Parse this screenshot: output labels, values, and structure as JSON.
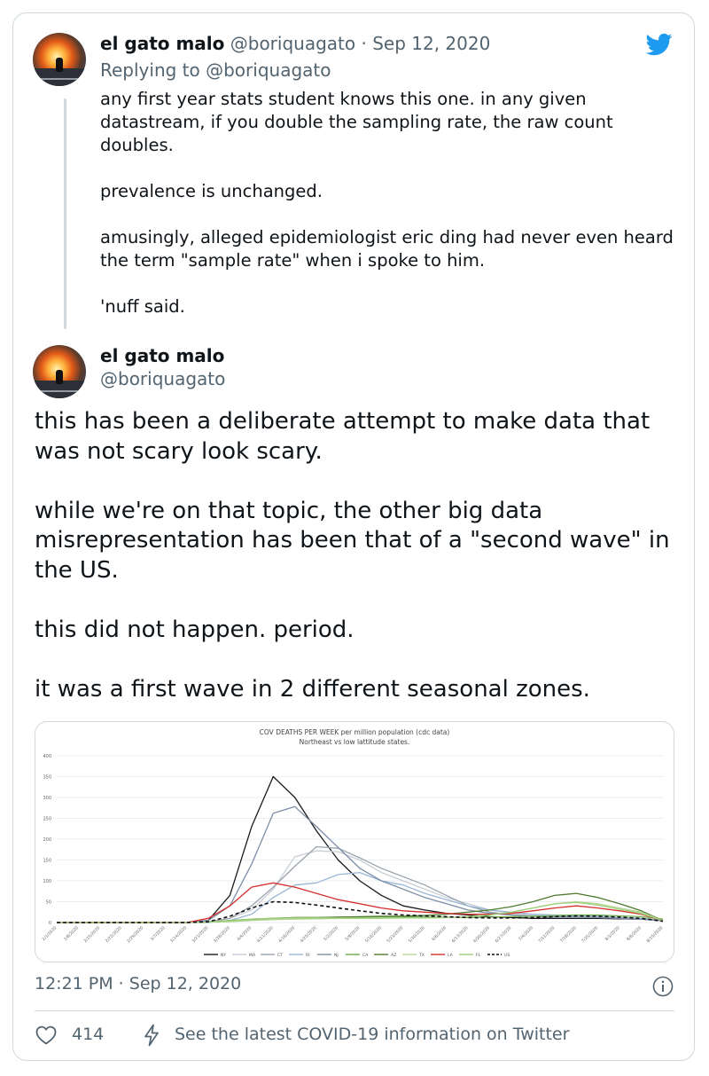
{
  "tweet1": {
    "display_name": "el gato malo",
    "handle": "@boriquagato",
    "separator": "·",
    "date": "Sep 12, 2020",
    "replying_to": "Replying to @boriquagato",
    "text": "any first year stats student knows this one.  in any given datastream, if you double the sampling rate, the raw count doubles.\n\nprevalence is unchanged.\n\namusingly, alleged epidemiologist eric ding had never even heard the term \"sample rate\" when i spoke to him.\n\n'nuff said."
  },
  "tweet2": {
    "display_name": "el gato malo",
    "handle": "@boriquagato",
    "text": "this has been a deliberate attempt to make data that was not scary look scary.\n\nwhile we're on that topic, the other big data misrepresentation has been that of a \"second wave\" in the US.\n\nthis did not happen.  period.\n\nit was a first wave in 2 different seasonal zones."
  },
  "footer": {
    "timestamp": "12:21 PM · Sep 12, 2020",
    "like_count": "414",
    "covid_link": "See the latest COVID-19 information on Twitter"
  },
  "icons": {
    "brand": "twitter-bird-icon",
    "like": "heart-icon",
    "covid": "bolt-icon",
    "info": "info-icon"
  },
  "colors": {
    "twitter_blue": "#1d9bf0",
    "muted_text": "#536471",
    "border": "#cfd9de"
  },
  "chart_data": {
    "type": "line",
    "title": "COV DEATHS PER WEEK per million population (cdc data)",
    "subtitle": "Northeast vs low lattitude states.",
    "xlabel": "",
    "ylabel": "",
    "ylim": [
      0,
      400
    ],
    "yticks": [
      "0",
      "50",
      "100",
      "150",
      "200",
      "250",
      "300",
      "350",
      "400"
    ],
    "grid": true,
    "legend_position": "bottom",
    "categories": [
      "2/1/2020",
      "2/8/2020",
      "2/15/2020",
      "2/22/2020",
      "2/29/2020",
      "3/7/2020",
      "3/14/2020",
      "3/21/2020",
      "3/28/2020",
      "4/4/2020",
      "4/11/2020",
      "4/18/2020",
      "4/25/2020",
      "5/2/2020",
      "5/9/2020",
      "5/16/2020",
      "5/23/2020",
      "5/30/2020",
      "6/6/2020",
      "6/13/2020",
      "6/20/2020",
      "6/27/2020",
      "7/4/2020",
      "7/11/2020",
      "7/18/2020",
      "7/25/2020",
      "8/1/2020",
      "8/8/2020",
      "8/15/2020"
    ],
    "x_tick_labels": [
      "2/1/2020",
      "2/8/2020",
      "2/15/2020",
      "2/22/2020",
      "2/29/2020",
      "3/7/2020",
      "3/14/2020",
      "3/21/2020",
      "3/28/2020",
      "4/4/2020",
      "4/11/2020",
      "4/18/2020",
      "4/25/2020",
      "5/2/2020",
      "5/9/2020",
      "5/16/2020",
      "5/23/2020",
      "5/30/2020",
      "6/6/2020",
      "6/13/2020",
      "6/20/2020",
      "6/27/2020",
      "7/4/2020",
      "7/11/2020",
      "7/18/2020",
      "7/25/2020",
      "8/1/2020",
      "8/8/2020",
      "8/15/2020"
    ],
    "series": [
      {
        "name": "NY",
        "color": "#1a1a1a",
        "dash": false,
        "values": [
          0,
          0,
          0,
          0,
          0,
          0,
          0,
          5,
          65,
          230,
          350,
          300,
          220,
          150,
          100,
          65,
          40,
          30,
          22,
          18,
          14,
          12,
          10,
          10,
          10,
          10,
          9,
          8,
          5
        ]
      },
      {
        "name": "MA",
        "color": "#c9ced6",
        "dash": false,
        "values": [
          0,
          0,
          0,
          0,
          0,
          0,
          0,
          2,
          10,
          30,
          80,
          158,
          172,
          170,
          150,
          120,
          100,
          80,
          60,
          45,
          30,
          22,
          18,
          15,
          15,
          15,
          12,
          10,
          5
        ]
      },
      {
        "name": "CT",
        "color": "#9aa3ad",
        "dash": false,
        "values": [
          0,
          0,
          0,
          0,
          0,
          0,
          0,
          2,
          10,
          40,
          85,
          135,
          182,
          178,
          155,
          130,
          110,
          90,
          65,
          40,
          25,
          18,
          15,
          12,
          12,
          12,
          10,
          8,
          4
        ]
      },
      {
        "name": "RI",
        "color": "#9ab6d6",
        "dash": false,
        "values": [
          0,
          0,
          0,
          0,
          0,
          0,
          0,
          0,
          5,
          20,
          60,
          90,
          95,
          115,
          120,
          100,
          90,
          70,
          55,
          40,
          30,
          25,
          20,
          18,
          15,
          15,
          12,
          10,
          5
        ]
      },
      {
        "name": "NJ",
        "color": "#7c8ea6",
        "dash": false,
        "values": [
          0,
          0,
          0,
          0,
          0,
          0,
          0,
          5,
          40,
          140,
          262,
          278,
          230,
          180,
          130,
          100,
          80,
          60,
          45,
          30,
          22,
          18,
          15,
          14,
          13,
          12,
          10,
          8,
          5
        ]
      },
      {
        "name": "CA",
        "color": "#6fae4f",
        "dash": false,
        "values": [
          0,
          0,
          0,
          0,
          0,
          0,
          0,
          1,
          5,
          8,
          10,
          12,
          12,
          13,
          13,
          14,
          14,
          13,
          13,
          12,
          13,
          14,
          15,
          17,
          18,
          18,
          16,
          14,
          8
        ]
      },
      {
        "name": "AZ",
        "color": "#4f7a2f",
        "dash": false,
        "values": [
          0,
          0,
          0,
          0,
          0,
          0,
          0,
          1,
          3,
          7,
          10,
          12,
          12,
          13,
          14,
          15,
          15,
          17,
          20,
          25,
          30,
          38,
          50,
          65,
          70,
          60,
          45,
          28,
          5
        ]
      },
      {
        "name": "TX",
        "color": "#b7d89a",
        "dash": false,
        "values": [
          0,
          0,
          0,
          0,
          0,
          0,
          0,
          1,
          2,
          5,
          7,
          8,
          9,
          10,
          10,
          10,
          11,
          11,
          12,
          14,
          18,
          25,
          35,
          45,
          50,
          45,
          35,
          25,
          5
        ]
      },
      {
        "name": "LA",
        "color": "#d62f2f",
        "dash": false,
        "values": [
          0,
          0,
          0,
          0,
          0,
          0,
          0,
          10,
          40,
          85,
          95,
          85,
          70,
          55,
          45,
          35,
          28,
          25,
          22,
          20,
          20,
          22,
          28,
          35,
          40,
          35,
          28,
          20,
          5
        ]
      },
      {
        "name": "FL",
        "color": "#9fcf7a",
        "dash": false,
        "values": [
          0,
          0,
          0,
          0,
          0,
          0,
          0,
          1,
          4,
          8,
          10,
          11,
          11,
          11,
          11,
          11,
          11,
          11,
          12,
          14,
          18,
          25,
          35,
          45,
          48,
          42,
          32,
          22,
          5
        ]
      },
      {
        "name": "US",
        "color": "#111111",
        "dash": true,
        "values": [
          0,
          0,
          0,
          0,
          0,
          0,
          0,
          2,
          15,
          35,
          50,
          48,
          42,
          35,
          28,
          22,
          18,
          16,
          14,
          12,
          11,
          11,
          12,
          14,
          16,
          15,
          13,
          10,
          3
        ]
      }
    ]
  }
}
